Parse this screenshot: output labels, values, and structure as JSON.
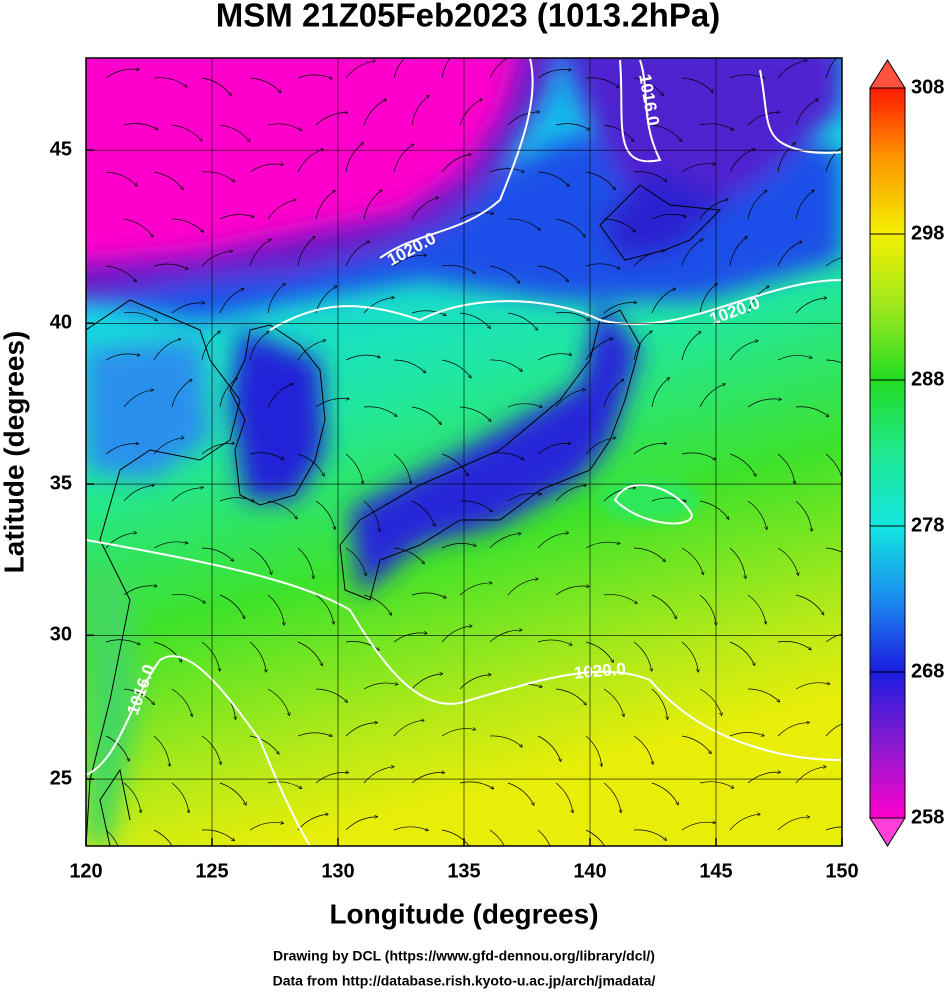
{
  "chart_data": {
    "type": "map",
    "title": "MSM 21Z05Feb2023 (1013.2hPa)",
    "x_label": "Longitude (degrees)",
    "y_label": "Latitude  (degrees)",
    "xlim": [
      120,
      150
    ],
    "ylim": [
      22.6,
      47.5
    ],
    "xticks": [
      120,
      125,
      130,
      135,
      140,
      145,
      150
    ],
    "yticks": [
      25,
      30,
      35,
      40,
      45
    ],
    "projection": "mercator",
    "grid": true,
    "colorbar": {
      "lim": [
        258,
        308
      ],
      "ticks": [
        258,
        268,
        278,
        288,
        298,
        308
      ],
      "colors": [
        "#ff00cc",
        "#8a1ad0",
        "#1c1ce0",
        "#1a8cf0",
        "#12e6e0",
        "#20e890",
        "#22dc22",
        "#9ee81e",
        "#f4f000",
        "#ff9a00",
        "#ff1a00"
      ]
    },
    "contour_labels": [
      "1016.0",
      "1020.0",
      "1020.0",
      "1020.0",
      "1016.0"
    ],
    "credits": [
      "Drawing by DCL (https://www.gfd-dennou.org/library/dcl/)",
      "Data from http://database.rish.kyoto-u.ac.jp/arch/jmadata/"
    ]
  }
}
